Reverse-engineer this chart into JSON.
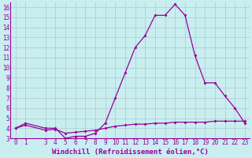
{
  "xlabel": "Windchill (Refroidissement éolien,°C)",
  "background_color": "#c8eef0",
  "line_color": "#990099",
  "x_values": [
    0,
    1,
    3,
    4,
    5,
    6,
    7,
    8,
    9,
    10,
    11,
    12,
    13,
    14,
    15,
    16,
    17,
    18,
    19,
    20,
    21,
    22,
    23
  ],
  "y1_values": [
    4.0,
    4.5,
    4.0,
    4.0,
    3.0,
    3.2,
    3.2,
    3.5,
    4.5,
    7.0,
    9.5,
    12.0,
    13.2,
    15.2,
    15.2,
    16.3,
    15.2,
    11.2,
    8.5,
    8.5,
    7.2,
    6.0,
    4.5
  ],
  "y2_values": [
    4.0,
    4.3,
    3.8,
    3.9,
    3.5,
    3.6,
    3.7,
    3.8,
    4.0,
    4.2,
    4.3,
    4.4,
    4.4,
    4.5,
    4.5,
    4.6,
    4.6,
    4.6,
    4.6,
    4.7,
    4.7,
    4.7,
    4.7
  ],
  "ylim_min": 3.0,
  "ylim_max": 16.5,
  "yticks": [
    3,
    4,
    5,
    6,
    7,
    8,
    9,
    10,
    11,
    12,
    13,
    14,
    15,
    16
  ],
  "xticks": [
    0,
    1,
    3,
    4,
    5,
    6,
    7,
    8,
    9,
    10,
    11,
    12,
    13,
    14,
    15,
    16,
    17,
    18,
    19,
    20,
    21,
    22,
    23
  ],
  "marker": "D",
  "markersize": 2.0,
  "linewidth": 0.9,
  "xlabel_fontsize": 6.5,
  "tick_fontsize": 5.5,
  "grid_color": "#b0c8c8",
  "grid_linewidth": 0.5
}
